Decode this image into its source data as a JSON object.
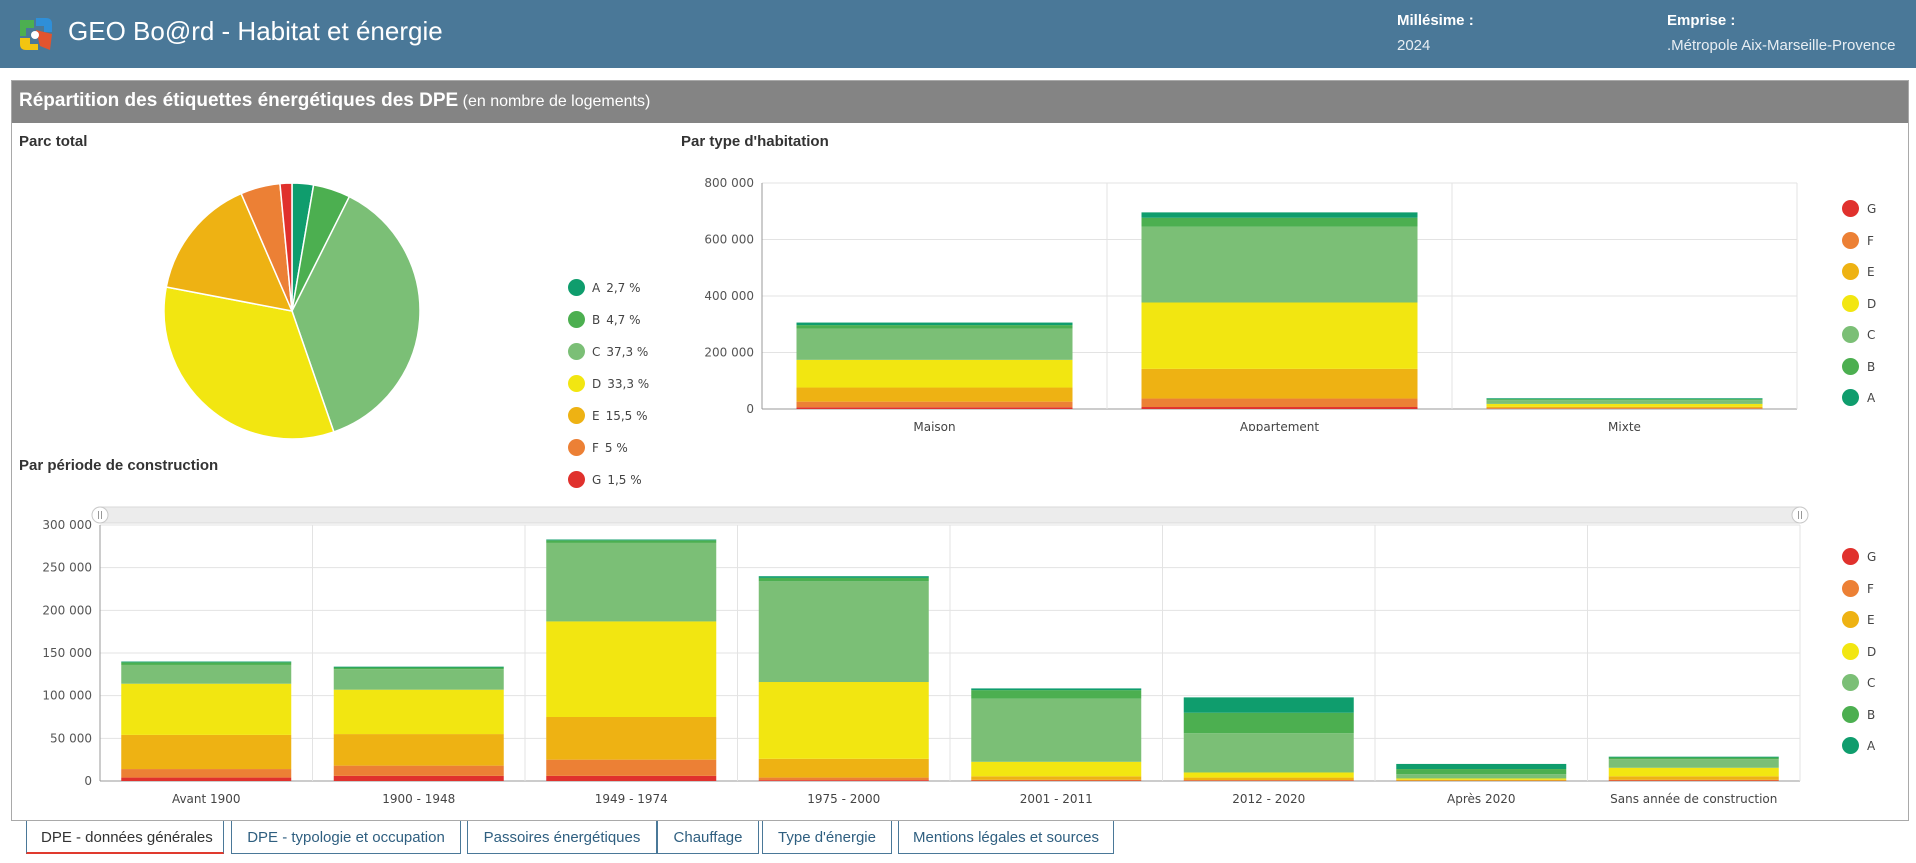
{
  "header": {
    "title": "GEO Bo@rd - Habitat et énergie",
    "millesime_label": "Millésime :",
    "millesime_value": "2024",
    "emprise_label": "Emprise :",
    "emprise_value": ".Métropole Aix-Marseille-Provence"
  },
  "panel": {
    "title": "Répartition des étiquettes énergétiques des DPE",
    "subtitle": "(en nombre de logements)"
  },
  "sections": {
    "parc_total": "Parc total",
    "par_type": "Par type d'habitation",
    "par_periode": "Par période de construction"
  },
  "colors": {
    "A": "#0f9d6d",
    "B": "#4caf50",
    "C": "#7bbf76",
    "D": "#f2e611",
    "E": "#eeb213",
    "F": "#ec8035",
    "G": "#e0312d"
  },
  "chart_data": [
    {
      "type": "pie",
      "title": "Parc total",
      "categories": [
        "A",
        "B",
        "C",
        "D",
        "E",
        "F",
        "G"
      ],
      "values": [
        2.7,
        4.7,
        37.3,
        33.3,
        15.5,
        5,
        1.5
      ],
      "labels": [
        "2,7 %",
        "4,7 %",
        "37,3 %",
        "33,3 %",
        "15,5 %",
        "5 %",
        "1,5 %"
      ]
    },
    {
      "type": "bar",
      "stacked": true,
      "title": "Par type d'habitation",
      "categories": [
        "Maison",
        "Appartement",
        "Mixte"
      ],
      "ylim": [
        0,
        800000
      ],
      "yticks": [
        "0",
        "200 000",
        "400 000",
        "600 000",
        "800 000"
      ],
      "series": [
        {
          "name": "G",
          "values": [
            6000,
            7000,
            1000
          ]
        },
        {
          "name": "F",
          "values": [
            20000,
            30000,
            2000
          ]
        },
        {
          "name": "E",
          "values": [
            50000,
            105000,
            5000
          ]
        },
        {
          "name": "D",
          "values": [
            98000,
            235000,
            10000
          ]
        },
        {
          "name": "C",
          "values": [
            110000,
            268000,
            13000
          ]
        },
        {
          "name": "B",
          "values": [
            13000,
            32000,
            4000
          ]
        },
        {
          "name": "A",
          "values": [
            9000,
            19000,
            3000
          ]
        }
      ]
    },
    {
      "type": "bar",
      "stacked": true,
      "title": "Par période de construction",
      "categories": [
        "Avant 1900",
        "1900 - 1948",
        "1949 - 1974",
        "1975 - 2000",
        "2001 - 2011",
        "2012 - 2020",
        "Après 2020",
        "Sans année de construction"
      ],
      "ylim": [
        0,
        300000
      ],
      "yticks": [
        "0",
        "50 000",
        "100 000",
        "150 000",
        "200 000",
        "250 000",
        "300 000"
      ],
      "series": [
        {
          "name": "G",
          "values": [
            4000,
            6000,
            6000,
            1000,
            500,
            500,
            200,
            500
          ]
        },
        {
          "name": "F",
          "values": [
            10000,
            12000,
            19000,
            3000,
            1000,
            500,
            300,
            1000
          ]
        },
        {
          "name": "E",
          "values": [
            40000,
            37000,
            50000,
            22000,
            4000,
            3000,
            1000,
            4000
          ]
        },
        {
          "name": "D",
          "values": [
            60000,
            52000,
            112000,
            90000,
            17000,
            6000,
            1500,
            10000
          ]
        },
        {
          "name": "C",
          "values": [
            22000,
            24000,
            92000,
            118000,
            74000,
            46000,
            5000,
            10000
          ]
        },
        {
          "name": "B",
          "values": [
            3000,
            2000,
            3000,
            4000,
            10000,
            24000,
            6000,
            2000
          ]
        },
        {
          "name": "A",
          "values": [
            1000,
            1000,
            1000,
            2000,
            2000,
            18000,
            6000,
            1000
          ]
        }
      ]
    }
  ],
  "legend_order": [
    "G",
    "F",
    "E",
    "D",
    "C",
    "B",
    "A"
  ],
  "tabs": [
    {
      "label": "DPE - données générales",
      "active": true
    },
    {
      "label": "DPE - typologie et occupation",
      "active": false
    },
    {
      "label": "Passoires énergétiques",
      "active": false
    },
    {
      "label": "Chauffage",
      "active": false
    },
    {
      "label": "Type d'énergie",
      "active": false
    },
    {
      "label": "Mentions légales et sources",
      "active": false
    }
  ]
}
